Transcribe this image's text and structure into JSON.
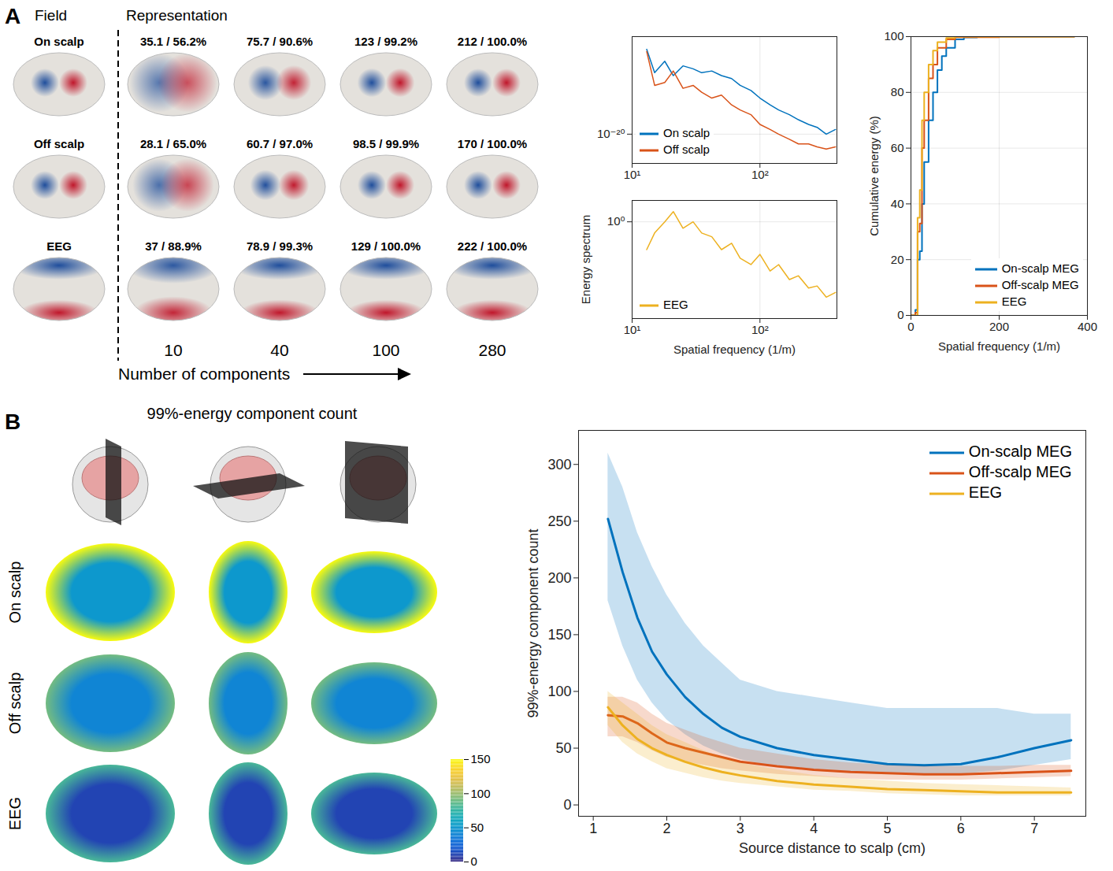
{
  "panel_labels": [
    "A",
    "B"
  ],
  "field_maps": {
    "header": "Field",
    "representation_title": "Representation",
    "rows": [
      {
        "name": "On scalp",
        "labels": [
          "35.1 / 56.2%",
          "75.7 / 90.6%",
          "123 / 99.2%",
          "212 / 100.0%"
        ],
        "energy": [
          56.2,
          90.6,
          99.2,
          100.0
        ]
      },
      {
        "name": "Off scalp",
        "labels": [
          "28.1 / 65.0%",
          "60.7 / 97.0%",
          "98.5 / 99.9%",
          "170 / 100.0%"
        ],
        "energy": [
          65.0,
          97.0,
          99.9,
          100.0
        ]
      },
      {
        "name": "EEG",
        "labels": [
          "37 / 88.9%",
          "78.9 / 99.3%",
          "129 / 100.0%",
          "222 / 100.0%"
        ],
        "energy": [
          88.9,
          99.3,
          100.0,
          100.0
        ]
      }
    ],
    "components": [
      10,
      40,
      100,
      280
    ],
    "x_label": "Number of components"
  },
  "slice_maps": {
    "title": "99%-energy component count",
    "rows": [
      {
        "name": "On scalp",
        "center": 50,
        "rim": 150
      },
      {
        "name": "Off scalp",
        "center": 40,
        "rim": 90
      },
      {
        "name": "EEG",
        "center": 10,
        "rim": 80
      }
    ],
    "colorbar": {
      "range": [
        0,
        150
      ],
      "ticks": [
        0,
        50,
        100,
        150
      ]
    }
  },
  "chart_data": [
    {
      "type": "line",
      "log": true,
      "grid": true,
      "legend": "lower left",
      "x": [
        13,
        15,
        18,
        21,
        25,
        30,
        35,
        42,
        50,
        60,
        70,
        85,
        100,
        120,
        140,
        170,
        200,
        240,
        280,
        330,
        390
      ],
      "xlim": [
        10,
        400
      ],
      "xticks": [
        {
          "value": 10,
          "label": "10¹"
        },
        {
          "value": 100,
          "label": "10²"
        }
      ],
      "ylim": [
        1e-23,
        1e-10
      ],
      "yticks": [
        {
          "value": 1e-20,
          "label": "10⁻²⁰"
        }
      ],
      "series": [
        {
          "name": "On scalp",
          "color": "#0072bd",
          "values": [
            5e-12,
            2e-14,
            3e-13,
            1e-14,
            1e-13,
            5e-14,
            2e-14,
            3e-14,
            1e-14,
            5e-15,
            1e-15,
            3e-16,
            5e-17,
            1e-17,
            3e-18,
            1e-18,
            3e-19,
            1e-19,
            5e-20,
            1e-20,
            3e-20
          ]
        },
        {
          "name": "Off scalp",
          "color": "#d95319",
          "values": [
            3e-12,
            1e-15,
            2e-15,
            3e-14,
            5e-16,
            1e-15,
            2e-16,
            5e-17,
            1e-16,
            1e-17,
            3e-18,
            1e-18,
            1e-19,
            3e-20,
            1e-20,
            3e-21,
            1e-21,
            1e-21,
            5e-22,
            3e-22,
            5e-22
          ]
        }
      ]
    },
    {
      "type": "line",
      "log": true,
      "grid": true,
      "legend": "lower left",
      "x_label": "Spatial frequency (1/m)",
      "y_label": "Energy spectrum",
      "x": [
        13,
        15,
        18,
        21,
        25,
        30,
        35,
        42,
        50,
        60,
        70,
        85,
        100,
        120,
        140,
        170,
        200,
        240,
        280,
        330,
        390
      ],
      "xlim": [
        10,
        400
      ],
      "xticks": [
        {
          "value": 10,
          "label": "10¹"
        },
        {
          "value": 100,
          "label": "10²"
        }
      ],
      "ylim": [
        3e-05,
        10
      ],
      "yticks": [
        {
          "value": 1,
          "label": "10⁰"
        }
      ],
      "series": [
        {
          "name": "EEG",
          "color": "#edb120",
          "values": [
            0.05,
            0.3,
            1,
            3,
            0.5,
            1,
            0.3,
            0.2,
            0.05,
            0.1,
            0.02,
            0.01,
            0.03,
            0.005,
            0.01,
            0.002,
            0.003,
            0.0008,
            0.001,
            0.0003,
            0.0005
          ]
        }
      ]
    },
    {
      "type": "line",
      "grid": true,
      "legend": "lower right",
      "line_style": "step",
      "x_label": "Spatial frequency (1/m)",
      "y_label": "Cumulative energy (%)",
      "xlim": [
        0,
        400
      ],
      "xticks": [
        0,
        200,
        400
      ],
      "ylim": [
        0,
        100
      ],
      "yticks": [
        0,
        20,
        40,
        60,
        80,
        100
      ],
      "series": [
        {
          "name": "On-scalp MEG",
          "color": "#0072bd",
          "x": [
            0,
            10,
            15,
            20,
            25,
            30,
            40,
            50,
            60,
            70,
            80,
            100,
            120,
            150,
            200,
            370
          ],
          "values": [
            0,
            2,
            20,
            23,
            40,
            55,
            70,
            80,
            88,
            93,
            96,
            99,
            99.7,
            100,
            100,
            100
          ]
        },
        {
          "name": "Off-scalp MEG",
          "color": "#d95319",
          "x": [
            0,
            10,
            15,
            20,
            25,
            30,
            40,
            50,
            60,
            80,
            100,
            200,
            370
          ],
          "values": [
            0,
            1,
            30,
            33,
            60,
            70,
            85,
            90,
            96,
            99,
            99.8,
            100,
            100
          ]
        },
        {
          "name": "EEG",
          "color": "#edb120",
          "x": [
            0,
            10,
            15,
            20,
            25,
            30,
            40,
            50,
            60,
            80,
            100,
            370
          ],
          "values": [
            0,
            0,
            35,
            45,
            70,
            80,
            90,
            95,
            98,
            99.5,
            100,
            100
          ]
        }
      ]
    },
    {
      "type": "line",
      "legend": "upper right",
      "x_label": "Source distance to scalp (cm)",
      "y_label": "99%-energy component count",
      "x": [
        1.2,
        1.4,
        1.6,
        1.8,
        2.0,
        2.25,
        2.5,
        2.75,
        3.0,
        3.5,
        4.0,
        4.5,
        5.0,
        5.5,
        6.0,
        6.5,
        7.0,
        7.5
      ],
      "xlim": [
        0.8,
        7.7
      ],
      "xticks": [
        1,
        2,
        3,
        4,
        5,
        6,
        7
      ],
      "ylim": [
        -10,
        330
      ],
      "yticks": [
        0,
        50,
        100,
        150,
        200,
        250,
        300
      ],
      "series": [
        {
          "name": "On-scalp MEG",
          "color": "#0072bd",
          "values": [
            252,
            205,
            165,
            135,
            115,
            95,
            80,
            68,
            60,
            50,
            44,
            40,
            36,
            35,
            36,
            42,
            50,
            57
          ],
          "band_low": [
            180,
            140,
            110,
            90,
            75,
            62,
            52,
            45,
            40,
            33,
            30,
            28,
            27,
            27,
            27,
            30,
            35,
            40
          ],
          "band_high": [
            310,
            280,
            240,
            210,
            185,
            160,
            140,
            125,
            110,
            100,
            95,
            90,
            85,
            85,
            85,
            85,
            80,
            80
          ]
        },
        {
          "name": "Off-scalp MEG",
          "color": "#d95319",
          "values": [
            79,
            78,
            72,
            63,
            55,
            50,
            46,
            42,
            38,
            34,
            31,
            29,
            28,
            27,
            27,
            28,
            29,
            30
          ],
          "band_low": [
            60,
            60,
            55,
            48,
            42,
            38,
            35,
            32,
            30,
            27,
            25,
            23,
            22,
            22,
            22,
            23,
            24,
            25
          ],
          "band_high": [
            95,
            95,
            90,
            80,
            72,
            66,
            60,
            55,
            50,
            45,
            40,
            37,
            35,
            34,
            34,
            34,
            35,
            35
          ]
        },
        {
          "name": "EEG",
          "color": "#edb120",
          "values": [
            86,
            70,
            58,
            50,
            44,
            38,
            33,
            29,
            26,
            21,
            18,
            16,
            14,
            13,
            12,
            11,
            11,
            11
          ],
          "band_low": [
            70,
            55,
            45,
            38,
            32,
            28,
            24,
            21,
            19,
            16,
            13,
            12,
            10,
            9,
            8,
            8,
            8,
            8
          ],
          "band_high": [
            100,
            90,
            80,
            70,
            62,
            55,
            48,
            42,
            37,
            31,
            26,
            23,
            21,
            19,
            18,
            17,
            16,
            15
          ]
        }
      ]
    }
  ]
}
